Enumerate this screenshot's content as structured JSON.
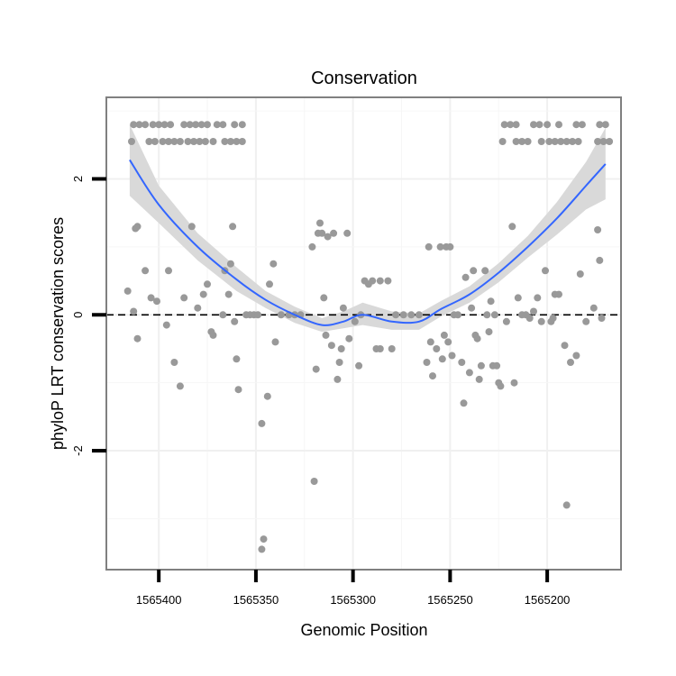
{
  "chart_data": {
    "type": "scatter",
    "title": "Conservation",
    "xlabel": "Genomic Position",
    "ylabel": "phyloP LRT conservation scores",
    "xlim": [
      1565427,
      1565162
    ],
    "x_reversed": true,
    "ylim": [
      -3.75,
      3.2
    ],
    "x_ticks": [
      1565400,
      1565350,
      1565300,
      1565250,
      1565200
    ],
    "x_tick_labels": [
      "1565400",
      "1565350",
      "1565300",
      "1565250",
      "1565200"
    ],
    "y_ticks": [
      2,
      0,
      -2
    ],
    "y_tick_labels": [
      "2",
      "0",
      "-2"
    ],
    "grid": true,
    "reference_line": {
      "y": 0,
      "style": "dashed"
    },
    "colors": {
      "points": "#999999",
      "smooth": "#3366ff",
      "band": "#d9d9d9",
      "border": "#808080"
    },
    "points": [
      {
        "x": 1565413,
        "y": 2.8
      },
      {
        "x": 1565410,
        "y": 2.8
      },
      {
        "x": 1565407,
        "y": 2.8
      },
      {
        "x": 1565403,
        "y": 2.8
      },
      {
        "x": 1565400,
        "y": 2.8
      },
      {
        "x": 1565397,
        "y": 2.8
      },
      {
        "x": 1565394,
        "y": 2.8
      },
      {
        "x": 1565387,
        "y": 2.8
      },
      {
        "x": 1565384,
        "y": 2.8
      },
      {
        "x": 1565381,
        "y": 2.8
      },
      {
        "x": 1565378,
        "y": 2.8
      },
      {
        "x": 1565375,
        "y": 2.8
      },
      {
        "x": 1565370,
        "y": 2.8
      },
      {
        "x": 1565367,
        "y": 2.8
      },
      {
        "x": 1565361,
        "y": 2.8
      },
      {
        "x": 1565357,
        "y": 2.8
      },
      {
        "x": 1565414,
        "y": 2.55
      },
      {
        "x": 1565405,
        "y": 2.55
      },
      {
        "x": 1565402,
        "y": 2.55
      },
      {
        "x": 1565398,
        "y": 2.55
      },
      {
        "x": 1565395,
        "y": 2.55
      },
      {
        "x": 1565392,
        "y": 2.55
      },
      {
        "x": 1565389,
        "y": 2.55
      },
      {
        "x": 1565385,
        "y": 2.55
      },
      {
        "x": 1565382,
        "y": 2.55
      },
      {
        "x": 1565379,
        "y": 2.55
      },
      {
        "x": 1565376,
        "y": 2.55
      },
      {
        "x": 1565372,
        "y": 2.55
      },
      {
        "x": 1565366,
        "y": 2.55
      },
      {
        "x": 1565363,
        "y": 2.55
      },
      {
        "x": 1565360,
        "y": 2.55
      },
      {
        "x": 1565357,
        "y": 2.55
      },
      {
        "x": 1565222,
        "y": 2.8
      },
      {
        "x": 1565219,
        "y": 2.8
      },
      {
        "x": 1565216,
        "y": 2.8
      },
      {
        "x": 1565207,
        "y": 2.8
      },
      {
        "x": 1565204,
        "y": 2.8
      },
      {
        "x": 1565200,
        "y": 2.8
      },
      {
        "x": 1565194,
        "y": 2.8
      },
      {
        "x": 1565185,
        "y": 2.8
      },
      {
        "x": 1565182,
        "y": 2.8
      },
      {
        "x": 1565173,
        "y": 2.8
      },
      {
        "x": 1565170,
        "y": 2.8
      },
      {
        "x": 1565223,
        "y": 2.55
      },
      {
        "x": 1565216,
        "y": 2.55
      },
      {
        "x": 1565213,
        "y": 2.55
      },
      {
        "x": 1565210,
        "y": 2.55
      },
      {
        "x": 1565203,
        "y": 2.55
      },
      {
        "x": 1565199,
        "y": 2.55
      },
      {
        "x": 1565196,
        "y": 2.55
      },
      {
        "x": 1565193,
        "y": 2.55
      },
      {
        "x": 1565190,
        "y": 2.55
      },
      {
        "x": 1565187,
        "y": 2.55
      },
      {
        "x": 1565184,
        "y": 2.55
      },
      {
        "x": 1565174,
        "y": 2.55
      },
      {
        "x": 1565171,
        "y": 2.55
      },
      {
        "x": 1565168,
        "y": 2.55
      },
      {
        "x": 1565411,
        "y": 1.3
      },
      {
        "x": 1565412,
        "y": 1.27
      },
      {
        "x": 1565413,
        "y": 0.05
      },
      {
        "x": 1565416,
        "y": 0.35
      },
      {
        "x": 1565411,
        "y": -0.35
      },
      {
        "x": 1565407,
        "y": 0.65
      },
      {
        "x": 1565404,
        "y": 0.25
      },
      {
        "x": 1565401,
        "y": 0.2
      },
      {
        "x": 1565396,
        "y": -0.15
      },
      {
        "x": 1565395,
        "y": 0.65
      },
      {
        "x": 1565392,
        "y": -0.7
      },
      {
        "x": 1565389,
        "y": -1.05
      },
      {
        "x": 1565387,
        "y": 0.25
      },
      {
        "x": 1565383,
        "y": 1.3
      },
      {
        "x": 1565380,
        "y": 0.1
      },
      {
        "x": 1565377,
        "y": 0.3
      },
      {
        "x": 1565375,
        "y": 0.45
      },
      {
        "x": 1565373,
        "y": -0.25
      },
      {
        "x": 1565372,
        "y": -0.3
      },
      {
        "x": 1565367,
        "y": 0.0
      },
      {
        "x": 1565366,
        "y": 0.65
      },
      {
        "x": 1565364,
        "y": 0.3
      },
      {
        "x": 1565363,
        "y": 0.75
      },
      {
        "x": 1565362,
        "y": 1.3
      },
      {
        "x": 1565361,
        "y": -0.1
      },
      {
        "x": 1565360,
        "y": -0.65
      },
      {
        "x": 1565359,
        "y": -1.1
      },
      {
        "x": 1565355,
        "y": 0.0
      },
      {
        "x": 1565353,
        "y": 0.0
      },
      {
        "x": 1565351,
        "y": 0.0
      },
      {
        "x": 1565349,
        "y": 0.0
      },
      {
        "x": 1565347,
        "y": -1.6
      },
      {
        "x": 1565346,
        "y": -3.3
      },
      {
        "x": 1565347,
        "y": -3.45
      },
      {
        "x": 1565344,
        "y": -1.2
      },
      {
        "x": 1565343,
        "y": 0.45
      },
      {
        "x": 1565341,
        "y": 0.75
      },
      {
        "x": 1565340,
        "y": -0.4
      },
      {
        "x": 1565337,
        "y": 0.0
      },
      {
        "x": 1565333,
        "y": 0.0
      },
      {
        "x": 1565330,
        "y": 0.0
      },
      {
        "x": 1565327,
        "y": 0.0
      },
      {
        "x": 1565321,
        "y": 1.0
      },
      {
        "x": 1565320,
        "y": -2.45
      },
      {
        "x": 1565319,
        "y": -0.8
      },
      {
        "x": 1565318,
        "y": 1.2
      },
      {
        "x": 1565317,
        "y": 1.35
      },
      {
        "x": 1565316,
        "y": 1.2
      },
      {
        "x": 1565315,
        "y": 0.25
      },
      {
        "x": 1565314,
        "y": -0.3
      },
      {
        "x": 1565313,
        "y": 1.15
      },
      {
        "x": 1565311,
        "y": -0.45
      },
      {
        "x": 1565310,
        "y": 1.2
      },
      {
        "x": 1565308,
        "y": -0.95
      },
      {
        "x": 1565307,
        "y": -0.7
      },
      {
        "x": 1565306,
        "y": -0.5
      },
      {
        "x": 1565305,
        "y": 0.1
      },
      {
        "x": 1565303,
        "y": 1.2
      },
      {
        "x": 1565302,
        "y": -0.35
      },
      {
        "x": 1565299,
        "y": -0.1
      },
      {
        "x": 1565297,
        "y": -0.75
      },
      {
        "x": 1565296,
        "y": 0.0
      },
      {
        "x": 1565294,
        "y": 0.5
      },
      {
        "x": 1565292,
        "y": 0.45
      },
      {
        "x": 1565290,
        "y": 0.5
      },
      {
        "x": 1565288,
        "y": -0.5
      },
      {
        "x": 1565286,
        "y": -0.5
      },
      {
        "x": 1565286,
        "y": 0.5
      },
      {
        "x": 1565282,
        "y": 0.5
      },
      {
        "x": 1565280,
        "y": -0.5
      },
      {
        "x": 1565278,
        "y": 0.0
      },
      {
        "x": 1565274,
        "y": 0.0
      },
      {
        "x": 1565270,
        "y": 0.0
      },
      {
        "x": 1565266,
        "y": 0.0
      },
      {
        "x": 1565262,
        "y": -0.7
      },
      {
        "x": 1565261,
        "y": 1.0
      },
      {
        "x": 1565260,
        "y": -0.4
      },
      {
        "x": 1565259,
        "y": -0.9
      },
      {
        "x": 1565257,
        "y": -0.5
      },
      {
        "x": 1565255,
        "y": 1.0
      },
      {
        "x": 1565254,
        "y": -0.65
      },
      {
        "x": 1565253,
        "y": -0.3
      },
      {
        "x": 1565252,
        "y": 1.0
      },
      {
        "x": 1565251,
        "y": -0.4
      },
      {
        "x": 1565250,
        "y": 1.0
      },
      {
        "x": 1565249,
        "y": -0.6
      },
      {
        "x": 1565248,
        "y": 0.0
      },
      {
        "x": 1565246,
        "y": 0.0
      },
      {
        "x": 1565244,
        "y": -0.7
      },
      {
        "x": 1565243,
        "y": -1.3
      },
      {
        "x": 1565242,
        "y": 0.55
      },
      {
        "x": 1565240,
        "y": -0.85
      },
      {
        "x": 1565239,
        "y": 0.1
      },
      {
        "x": 1565238,
        "y": 0.65
      },
      {
        "x": 1565237,
        "y": -0.3
      },
      {
        "x": 1565236,
        "y": -0.35
      },
      {
        "x": 1565235,
        "y": -0.95
      },
      {
        "x": 1565234,
        "y": -0.75
      },
      {
        "x": 1565232,
        "y": 0.65
      },
      {
        "x": 1565231,
        "y": 0.0
      },
      {
        "x": 1565230,
        "y": -0.25
      },
      {
        "x": 1565229,
        "y": 0.2
      },
      {
        "x": 1565228,
        "y": -0.75
      },
      {
        "x": 1565227,
        "y": 0.0
      },
      {
        "x": 1565226,
        "y": -0.75
      },
      {
        "x": 1565225,
        "y": -1.0
      },
      {
        "x": 1565224,
        "y": -1.05
      },
      {
        "x": 1565221,
        "y": -0.1
      },
      {
        "x": 1565218,
        "y": 1.3
      },
      {
        "x": 1565217,
        "y": -1.0
      },
      {
        "x": 1565215,
        "y": 0.25
      },
      {
        "x": 1565213,
        "y": 0.0
      },
      {
        "x": 1565211,
        "y": 0.0
      },
      {
        "x": 1565209,
        "y": -0.05
      },
      {
        "x": 1565207,
        "y": 0.05
      },
      {
        "x": 1565205,
        "y": 0.25
      },
      {
        "x": 1565203,
        "y": -0.1
      },
      {
        "x": 1565201,
        "y": 0.65
      },
      {
        "x": 1565198,
        "y": -0.1
      },
      {
        "x": 1565197,
        "y": -0.05
      },
      {
        "x": 1565196,
        "y": 0.3
      },
      {
        "x": 1565194,
        "y": 0.3
      },
      {
        "x": 1565191,
        "y": -0.45
      },
      {
        "x": 1565190,
        "y": -2.8
      },
      {
        "x": 1565188,
        "y": -0.7
      },
      {
        "x": 1565185,
        "y": -0.6
      },
      {
        "x": 1565183,
        "y": 0.6
      },
      {
        "x": 1565180,
        "y": -0.1
      },
      {
        "x": 1565176,
        "y": 0.1
      },
      {
        "x": 1565174,
        "y": 1.25
      },
      {
        "x": 1565173,
        "y": 0.8
      },
      {
        "x": 1565172,
        "y": -0.05
      }
    ],
    "smooth": {
      "x": [
        1565415,
        1565400,
        1565380,
        1565360,
        1565345,
        1565330,
        1565316,
        1565305,
        1565295,
        1565280,
        1565266,
        1565255,
        1565240,
        1565225,
        1565210,
        1565195,
        1565180,
        1565170
      ],
      "y": [
        2.28,
        1.62,
        1.0,
        0.52,
        0.22,
        0.0,
        -0.15,
        -0.1,
        0.0,
        -0.1,
        -0.1,
        0.08,
        0.3,
        0.62,
        1.0,
        1.42,
        1.9,
        2.22
      ],
      "lo": [
        1.75,
        1.35,
        0.8,
        0.35,
        0.1,
        -0.12,
        -0.25,
        -0.2,
        -0.15,
        -0.22,
        -0.22,
        -0.03,
        0.18,
        0.48,
        0.84,
        1.18,
        1.55,
        1.7
      ],
      "hi": [
        2.8,
        1.9,
        1.2,
        0.7,
        0.35,
        0.12,
        -0.05,
        0.05,
        0.18,
        0.05,
        0.02,
        0.2,
        0.42,
        0.76,
        1.16,
        1.66,
        2.25,
        2.75
      ]
    }
  }
}
